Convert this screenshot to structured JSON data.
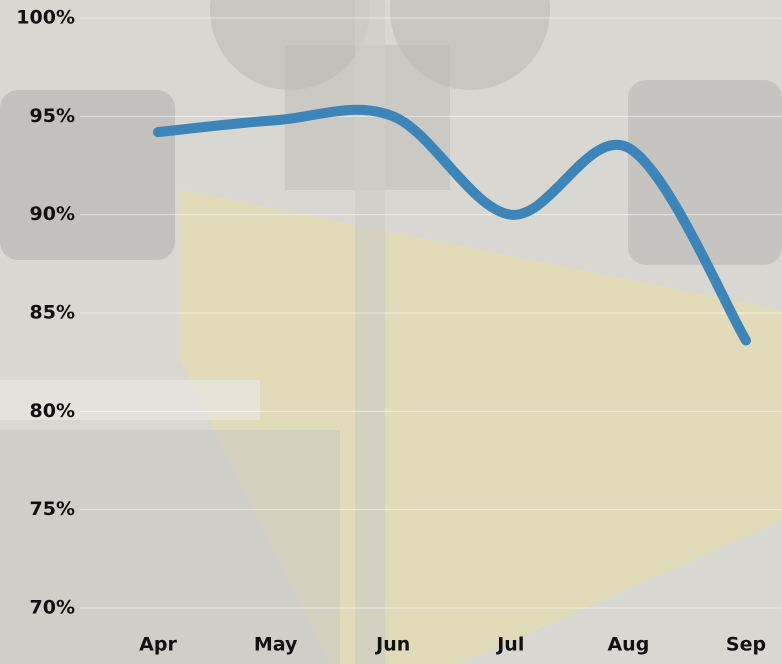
{
  "chart_data": {
    "type": "line",
    "categories": [
      "Apr",
      "May",
      "Jun",
      "Jul",
      "Aug",
      "Sep"
    ],
    "series": [
      {
        "color": "#3d85b8",
        "values": [
          94.2,
          94.8,
          95.0,
          90.0,
          93.4,
          83.6
        ]
      }
    ],
    "ylim": [
      70,
      100
    ],
    "yticks": [
      {
        "value": 70,
        "label": "70%"
      },
      {
        "value": 75,
        "label": "75%"
      },
      {
        "value": 80,
        "label": "80%"
      },
      {
        "value": 85,
        "label": "85%"
      },
      {
        "value": 90,
        "label": "90%"
      },
      {
        "value": 95,
        "label": "95%"
      },
      {
        "value": 100,
        "label": "100%"
      }
    ],
    "grid": true,
    "smooth": true
  }
}
